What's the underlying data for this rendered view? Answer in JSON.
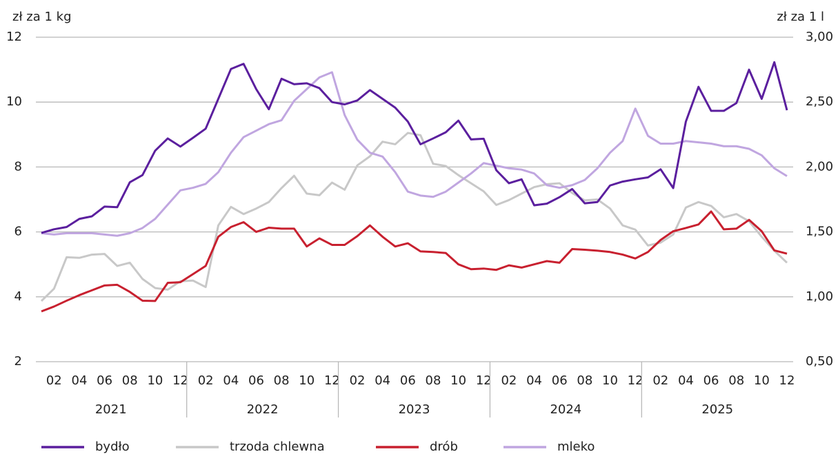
{
  "chart_data": {
    "type": "line",
    "y_axis_label": "zł za 1 kg",
    "y2_axis_label": "zł za 1 l",
    "categories": [
      null,
      "02",
      null,
      "04",
      null,
      "06",
      null,
      "08",
      null,
      "10",
      null,
      "12",
      null,
      "02",
      null,
      "04",
      null,
      "06",
      null,
      "08",
      null,
      "10",
      null,
      "12",
      null,
      "02",
      null,
      "04",
      null,
      "06",
      null,
      "08",
      null,
      "10",
      null,
      "12",
      null,
      "02",
      null,
      "04",
      null,
      "06",
      null,
      "08",
      null,
      "10",
      null,
      "12",
      null,
      "02",
      null,
      "04",
      null,
      "06",
      null,
      "08",
      null,
      "10",
      null,
      "12"
    ],
    "years": [
      "2021",
      "2022",
      "2023",
      "2024",
      "2025"
    ],
    "ylim": [
      2,
      12
    ],
    "yticks": [
      2,
      4,
      6,
      8,
      10,
      12
    ],
    "y2lim": [
      0.5,
      3.0
    ],
    "y2ticks": [
      {
        "value": 0.5,
        "label": "0,50"
      },
      {
        "value": 1.0,
        "label": "1,00"
      },
      {
        "value": 1.5,
        "label": "1,50"
      },
      {
        "value": 2.0,
        "label": "2,00"
      },
      {
        "value": 2.5,
        "label": "2,50"
      },
      {
        "value": 3.0,
        "label": "3,00"
      }
    ],
    "grid": true,
    "series": [
      {
        "name": "bydło",
        "color": "#5b1f9e",
        "values": [
          5.97,
          6.08,
          6.15,
          6.4,
          6.48,
          6.78,
          6.76,
          7.53,
          7.75,
          8.5,
          8.88,
          8.63,
          8.9,
          9.18,
          10.1,
          11.02,
          11.18,
          10.4,
          9.78,
          10.72,
          10.55,
          10.58,
          10.43,
          10.0,
          9.93,
          10.05,
          10.37,
          10.1,
          9.83,
          9.4,
          8.7,
          8.88,
          9.07,
          9.43,
          8.85,
          8.87,
          7.9,
          7.5,
          7.62,
          6.82,
          6.87,
          7.07,
          7.32,
          6.88,
          6.92,
          7.43,
          7.55,
          7.62,
          7.68,
          7.93,
          7.35,
          9.4,
          10.47,
          9.73,
          9.73,
          9.97,
          11.0,
          10.1,
          11.23,
          9.75
        ]
      },
      {
        "name": "trzoda chlewna",
        "color": "#c8c8c8",
        "values": [
          3.87,
          4.25,
          5.22,
          5.2,
          5.3,
          5.32,
          4.95,
          5.05,
          4.55,
          4.27,
          4.22,
          4.48,
          4.5,
          4.3,
          6.2,
          6.77,
          6.55,
          6.72,
          6.92,
          7.35,
          7.73,
          7.18,
          7.13,
          7.52,
          7.3,
          8.05,
          8.33,
          8.78,
          8.7,
          9.05,
          8.98,
          8.1,
          8.03,
          7.75,
          7.5,
          7.25,
          6.83,
          6.98,
          7.18,
          7.38,
          7.47,
          7.5,
          7.2,
          6.97,
          7.0,
          6.72,
          6.2,
          6.07,
          5.58,
          5.67,
          5.92,
          6.75,
          6.92,
          6.8,
          6.45,
          6.55,
          6.33,
          5.85,
          5.42,
          5.05
        ]
      },
      {
        "name": "drób",
        "color": "#c8202f",
        "values": [
          3.55,
          3.7,
          3.88,
          4.05,
          4.2,
          4.35,
          4.37,
          4.15,
          3.88,
          3.87,
          4.43,
          4.45,
          4.7,
          4.95,
          5.85,
          6.15,
          6.3,
          6.0,
          6.13,
          6.1,
          6.1,
          5.55,
          5.8,
          5.6,
          5.6,
          5.87,
          6.2,
          5.85,
          5.55,
          5.65,
          5.4,
          5.38,
          5.35,
          5.0,
          4.85,
          4.87,
          4.83,
          4.97,
          4.9,
          5.0,
          5.1,
          5.05,
          5.47,
          5.45,
          5.42,
          5.38,
          5.3,
          5.18,
          5.38,
          5.75,
          6.02,
          6.12,
          6.23,
          6.63,
          6.08,
          6.1,
          6.37,
          6.02,
          5.43,
          5.33
        ]
      },
      {
        "name": "mleko",
        "color": "#c0a6e0",
        "axis": "y2",
        "values": [
          1.49,
          1.48,
          1.49,
          1.49,
          1.49,
          1.48,
          1.47,
          1.49,
          1.53,
          1.6,
          1.71,
          1.82,
          1.84,
          1.87,
          1.96,
          2.11,
          2.23,
          2.28,
          2.33,
          2.36,
          2.51,
          2.6,
          2.69,
          2.73,
          2.4,
          2.21,
          2.11,
          2.08,
          1.96,
          1.81,
          1.78,
          1.77,
          1.81,
          1.88,
          1.95,
          2.03,
          2.01,
          1.99,
          1.98,
          1.95,
          1.86,
          1.84,
          1.86,
          1.9,
          1.99,
          2.11,
          2.2,
          2.45,
          2.24,
          2.18,
          2.18,
          2.2,
          2.19,
          2.18,
          2.16,
          2.16,
          2.14,
          2.09,
          1.99,
          1.93
        ]
      }
    ]
  }
}
